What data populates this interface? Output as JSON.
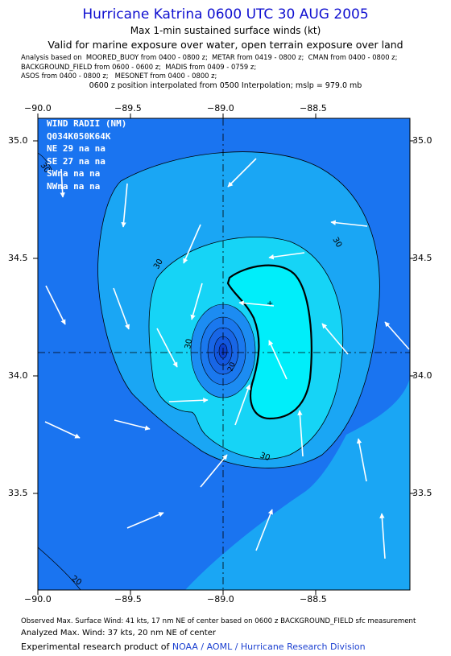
{
  "header": {
    "title": "Hurricane Katrina 0600 UTC 30 AUG 2005",
    "subtitle1": "Max 1-min sustained surface winds (kt)",
    "subtitle2": "Valid for marine exposure over water, open terrain exposure over land",
    "analysis_lines": [
      "Analysis based on  MOORED_BUOY from 0400 - 0800 z;  METAR from 0419 - 0800 z;  CMAN from 0400 - 0800 z;",
      "BACKGROUND_FIELD from 0600 - 0600 z;  MADIS from 0409 - 0759 z;",
      "ASOS from 0400 - 0800 z;   MESONET from 0400 - 0800 z;"
    ],
    "interpolation": "0600 z position interpolated from 0500 Interpolation; mslp = 979.0 mb"
  },
  "map": {
    "lon_ticks": [
      "−90.0",
      "−89.5",
      "−89.0",
      "−88.5"
    ],
    "lon_values": [
      -90.0,
      -89.5,
      -89.0,
      -88.5
    ],
    "lat_ticks": [
      "35.0",
      "34.5",
      "34.0",
      "33.5"
    ],
    "lat_values": [
      35.0,
      34.5,
      34.0,
      33.5
    ],
    "lon_range": [
      -90.03,
      -88.03
    ],
    "lat_range": [
      33.1,
      35.1
    ],
    "center": {
      "lon": -89.0,
      "lat": 34.1
    },
    "contour_labels": [
      "30",
      "30",
      "30",
      "30",
      "20",
      "20",
      "30"
    ],
    "wind_radii": {
      "heading": "WIND RADII (NM)",
      "columns": "Q034K050K64K",
      "rows": [
        {
          "quad": "NE",
          "values": "29 na na"
        },
        {
          "quad": "SE",
          "values": "27 na na"
        },
        {
          "quad": "SW",
          "values": "na na na"
        },
        {
          "quad": "NW",
          "values": "na na na"
        }
      ]
    },
    "colors": {
      "deep": "#1a74f0",
      "mid": "#1aa6f4",
      "light": "#16d4f6",
      "cyan": "#00eefa",
      "core": "#1060e0"
    }
  },
  "footer": {
    "observed": "Observed Max. Surface Wind: 41 kts, 17 nm NE of center based on 0600 z BACKGROUND_FIELD sfc measurement",
    "analyzed": "Analyzed Max. Wind: 37 kts, 20 nm NE of center",
    "credit_prefix": "Experimental research product of ",
    "credit_org": "NOAA / AOML / Hurricane Research Division"
  }
}
